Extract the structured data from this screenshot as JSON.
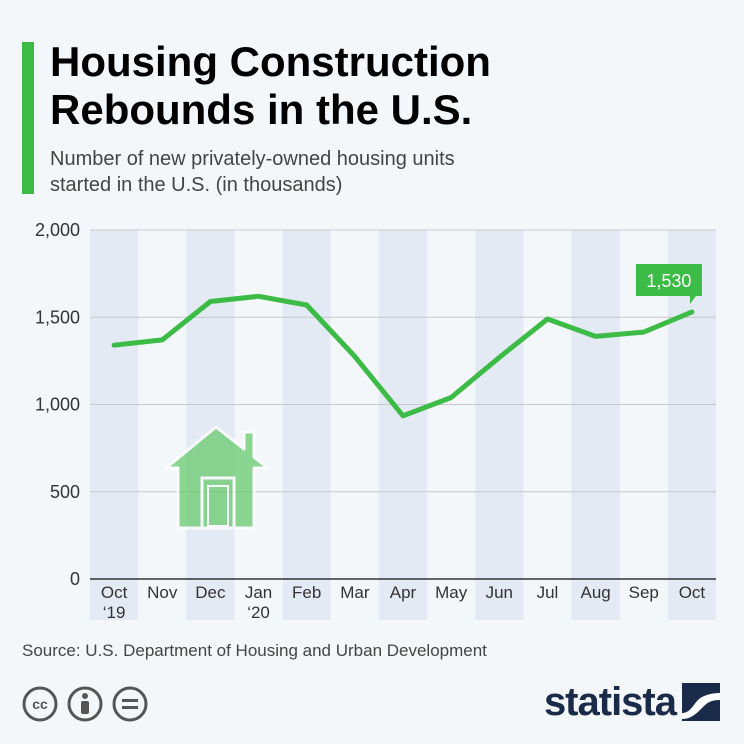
{
  "header": {
    "title": "Housing Construction\nRebounds in the U.S.",
    "subtitle": "Number of new privately-owned housing units\nstarted in the U.S. (in thousands)"
  },
  "chart_data": {
    "type": "line",
    "title": "Housing Construction Rebounds in the U.S.",
    "subtitle": "Number of new privately-owned housing units started in the U.S. (in thousands)",
    "categories": [
      "Oct\n‘19",
      "Nov",
      "Dec",
      "Jan\n‘20",
      "Feb",
      "Mar",
      "Apr",
      "May",
      "Jun",
      "Jul",
      "Aug",
      "Sep",
      "Oct"
    ],
    "series": [
      {
        "name": "",
        "values": [
          1340,
          1370,
          1590,
          1620,
          1570,
          1275,
          935,
          1040,
          1270,
          1490,
          1390,
          1415,
          1530
        ]
      }
    ],
    "yticks": [
      "0",
      "500",
      "1,000",
      "1,500",
      "2,000"
    ],
    "ylim": [
      0,
      2000
    ],
    "grid": true,
    "annotation": {
      "label": "1,530",
      "category_index": 12
    },
    "colors": {
      "line": "#3dbb47",
      "band": "#e4eaf4",
      "grid": "#c8c8c8"
    }
  },
  "footer": {
    "source": "Source: U.S. Department of Housing and Urban Development",
    "logo_text": "statista",
    "icons": [
      "cc-icon",
      "attribution-icon",
      "no-derivatives-icon"
    ]
  }
}
